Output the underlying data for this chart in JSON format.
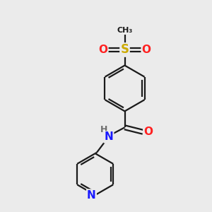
{
  "background_color": "#ebebeb",
  "bond_color": "#1a1a1a",
  "bond_width": 1.6,
  "atom_colors": {
    "N": "#1919ff",
    "O": "#ff2020",
    "S": "#ccaa00",
    "C": "#1a1a1a",
    "H": "#6e6e6e"
  },
  "font_size_atom": 11,
  "font_size_small": 9,
  "scale": 1.0
}
